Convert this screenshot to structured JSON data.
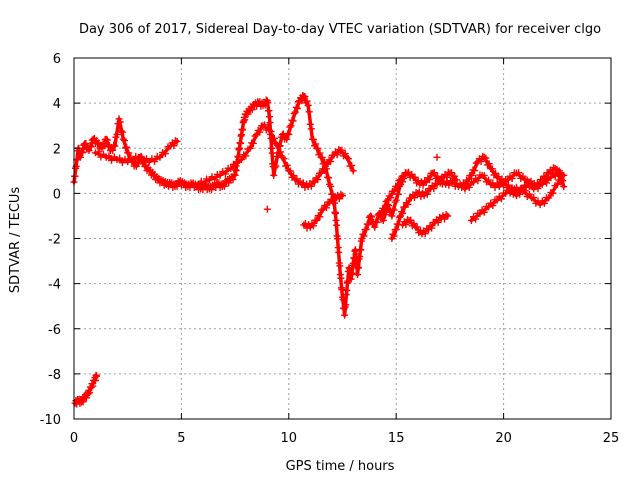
{
  "chart_data": {
    "type": "scatter",
    "title": "Day 306 of 2017, Sidereal Day-to-day VTEC variation (SDTVAR) for receiver clgo",
    "xlabel": "GPS time / hours",
    "ylabel": "SDTVAR / TECUs",
    "xlim": [
      0,
      25
    ],
    "ylim": [
      -10,
      6
    ],
    "xticks": [
      0,
      5,
      10,
      15,
      20,
      25
    ],
    "yticks": [
      -10,
      -8,
      -6,
      -4,
      -2,
      0,
      2,
      4,
      6
    ],
    "xtick_labels": [
      "0",
      "5",
      "10",
      "15",
      "20",
      "25"
    ],
    "ytick_labels": [
      "-10",
      "-8",
      "-6",
      "-4",
      "-2",
      "0",
      "2",
      "4",
      "6"
    ],
    "grid": true,
    "marker": "+",
    "color": "#ff0000",
    "series": [
      {
        "name": "SDTVAR",
        "segments": [
          [
            [
              0.05,
              -9.3
            ],
            [
              0.2,
              -9.2
            ],
            [
              0.35,
              -9.25
            ],
            [
              0.5,
              -9.05
            ],
            [
              0.65,
              -8.9
            ],
            [
              0.8,
              -8.6
            ],
            [
              0.95,
              -8.3
            ],
            [
              1.05,
              -8.1
            ]
          ],
          [
            [
              0.0,
              0.5
            ],
            [
              0.1,
              1.2
            ],
            [
              0.2,
              2.0
            ],
            [
              0.3,
              1.6
            ],
            [
              0.5,
              2.2
            ],
            [
              0.7,
              1.9
            ],
            [
              0.9,
              2.4
            ],
            [
              1.1,
              2.2
            ],
            [
              1.3,
              2.0
            ],
            [
              1.5,
              2.4
            ],
            [
              1.7,
              1.9
            ],
            [
              1.9,
              2.1
            ],
            [
              2.1,
              3.3
            ],
            [
              2.3,
              2.4
            ],
            [
              2.5,
              1.8
            ],
            [
              2.7,
              1.4
            ],
            [
              2.9,
              1.2
            ],
            [
              3.1,
              1.6
            ],
            [
              3.3,
              1.2
            ],
            [
              3.5,
              1.0
            ],
            [
              3.7,
              0.8
            ],
            [
              3.9,
              0.6
            ],
            [
              4.1,
              0.5
            ],
            [
              4.3,
              0.4
            ],
            [
              4.5,
              0.4
            ],
            [
              4.7,
              0.3
            ],
            [
              4.9,
              0.5
            ],
            [
              5.1,
              0.4
            ],
            [
              5.3,
              0.3
            ],
            [
              5.5,
              0.4
            ],
            [
              5.7,
              0.3
            ],
            [
              5.9,
              0.2
            ],
            [
              6.1,
              0.3
            ],
            [
              6.3,
              0.2
            ],
            [
              6.5,
              0.3
            ],
            [
              6.7,
              0.4
            ],
            [
              6.9,
              0.3
            ],
            [
              7.1,
              0.5
            ],
            [
              7.3,
              0.6
            ],
            [
              7.5,
              0.8
            ],
            [
              7.6,
              1.4
            ],
            [
              7.7,
              2.0
            ],
            [
              7.8,
              2.6
            ],
            [
              7.9,
              3.2
            ],
            [
              8.0,
              3.5
            ],
            [
              8.2,
              3.7
            ],
            [
              8.4,
              3.9
            ],
            [
              8.6,
              4.0
            ],
            [
              8.8,
              3.9
            ],
            [
              9.0,
              4.1
            ],
            [
              9.1,
              3.4
            ],
            [
              9.2,
              2.0
            ],
            [
              9.3,
              0.8
            ],
            [
              9.5,
              1.8
            ],
            [
              9.7,
              2.6
            ],
            [
              9.9,
              2.4
            ],
            [
              10.1,
              3.0
            ],
            [
              10.3,
              3.6
            ],
            [
              10.5,
              4.1
            ],
            [
              10.7,
              4.3
            ],
            [
              10.9,
              3.9
            ],
            [
              11.1,
              2.4
            ],
            [
              11.3,
              2.0
            ],
            [
              11.5,
              1.6
            ],
            [
              11.7,
              1.2
            ],
            [
              11.9,
              0.4
            ],
            [
              12.1,
              -0.3
            ],
            [
              12.2,
              -1.2
            ],
            [
              12.3,
              -2.4
            ],
            [
              12.4,
              -3.6
            ],
            [
              12.5,
              -4.6
            ],
            [
              12.6,
              -5.4
            ],
            [
              12.7,
              -4.3
            ],
            [
              12.8,
              -3.3
            ],
            [
              12.9,
              -3.8
            ],
            [
              13.0,
              -3.1
            ],
            [
              13.1,
              -2.5
            ],
            [
              13.2,
              -3.6
            ],
            [
              13.3,
              -2.8
            ],
            [
              13.4,
              -2.0
            ],
            [
              13.6,
              -1.6
            ],
            [
              13.8,
              -1.0
            ],
            [
              14.0,
              -1.5
            ],
            [
              14.2,
              -0.9
            ],
            [
              14.4,
              -1.2
            ],
            [
              14.6,
              -0.5
            ],
            [
              14.8,
              -1.0
            ],
            [
              15.0,
              -0.3
            ],
            [
              15.2,
              0.4
            ],
            [
              15.4,
              0.8
            ]
          ],
          [
            [
              1.0,
              1.8
            ],
            [
              1.5,
              1.6
            ],
            [
              2.0,
              1.5
            ],
            [
              2.5,
              1.4
            ],
            [
              3.0,
              1.6
            ],
            [
              3.5,
              1.4
            ],
            [
              4.0,
              1.6
            ],
            [
              4.5,
              2.1
            ],
            [
              4.8,
              2.3
            ]
          ],
          [
            [
              5.8,
              0.4
            ],
            [
              6.3,
              0.6
            ],
            [
              6.8,
              0.8
            ],
            [
              7.3,
              1.1
            ],
            [
              7.8,
              1.5
            ],
            [
              8.2,
              2.0
            ],
            [
              8.5,
              2.6
            ],
            [
              8.8,
              3.0
            ],
            [
              9.1,
              2.8
            ],
            [
              9.4,
              2.2
            ],
            [
              9.7,
              1.6
            ],
            [
              10.0,
              1.0
            ],
            [
              10.3,
              0.6
            ],
            [
              10.6,
              0.4
            ],
            [
              10.9,
              0.3
            ],
            [
              11.2,
              0.5
            ],
            [
              11.5,
              0.9
            ],
            [
              11.8,
              1.3
            ],
            [
              12.1,
              1.7
            ],
            [
              12.4,
              1.9
            ],
            [
              12.7,
              1.6
            ],
            [
              13.0,
              1.0
            ]
          ],
          [
            [
              10.7,
              -1.4
            ],
            [
              11.0,
              -1.5
            ],
            [
              11.3,
              -1.2
            ],
            [
              11.6,
              -0.7
            ],
            [
              11.9,
              -0.4
            ],
            [
              12.2,
              -0.2
            ],
            [
              12.5,
              -0.1
            ]
          ],
          [
            [
              14.3,
              -0.9
            ],
            [
              14.6,
              -0.3
            ],
            [
              14.9,
              0.1
            ],
            [
              15.2,
              0.6
            ],
            [
              15.5,
              0.9
            ],
            [
              15.8,
              0.7
            ],
            [
              16.1,
              0.4
            ],
            [
              16.4,
              0.5
            ],
            [
              16.7,
              0.9
            ],
            [
              17.0,
              0.6
            ],
            [
              17.3,
              0.4
            ],
            [
              17.6,
              0.5
            ],
            [
              17.9,
              0.3
            ],
            [
              18.2,
              0.4
            ],
            [
              18.5,
              0.8
            ],
            [
              18.8,
              1.4
            ],
            [
              19.1,
              1.6
            ],
            [
              19.4,
              1.1
            ],
            [
              19.7,
              0.7
            ],
            [
              20.0,
              0.5
            ],
            [
              20.3,
              0.2
            ],
            [
              20.6,
              -0.1
            ],
            [
              20.9,
              0.2
            ],
            [
              21.2,
              0.5
            ],
            [
              21.5,
              0.3
            ],
            [
              21.8,
              0.6
            ],
            [
              22.1,
              0.9
            ],
            [
              22.4,
              1.1
            ],
            [
              22.7,
              0.6
            ]
          ],
          [
            [
              14.8,
              -2.0
            ],
            [
              15.0,
              -1.6
            ],
            [
              15.2,
              -1.0
            ],
            [
              15.4,
              -0.6
            ],
            [
              15.7,
              -0.2
            ],
            [
              16.0,
              0.0
            ],
            [
              16.3,
              -0.1
            ],
            [
              16.6,
              0.2
            ],
            [
              16.9,
              0.4
            ],
            [
              17.2,
              0.7
            ],
            [
              17.5,
              0.9
            ],
            [
              17.8,
              0.6
            ]
          ],
          [
            [
              15.3,
              -1.4
            ],
            [
              15.6,
              -1.2
            ],
            [
              15.9,
              -1.5
            ],
            [
              16.2,
              -1.8
            ],
            [
              16.5,
              -1.6
            ],
            [
              16.8,
              -1.3
            ],
            [
              17.1,
              -1.1
            ],
            [
              17.4,
              -1.0
            ]
          ],
          [
            [
              18.2,
              0.2
            ],
            [
              18.6,
              0.5
            ],
            [
              19.0,
              0.8
            ],
            [
              19.4,
              0.4
            ],
            [
              19.8,
              0.3
            ],
            [
              20.2,
              0.6
            ],
            [
              20.6,
              0.9
            ],
            [
              21.0,
              0.6
            ],
            [
              21.4,
              0.2
            ],
            [
              21.8,
              0.4
            ],
            [
              22.2,
              0.7
            ],
            [
              22.6,
              1.0
            ],
            [
              22.8,
              0.3
            ]
          ],
          [
            [
              18.5,
              -1.2
            ],
            [
              18.9,
              -0.9
            ],
            [
              19.3,
              -0.6
            ],
            [
              19.7,
              -0.3
            ],
            [
              20.1,
              0.0
            ],
            [
              20.5,
              0.2
            ],
            [
              20.9,
              0.1
            ],
            [
              21.3,
              -0.2
            ],
            [
              21.7,
              -0.5
            ],
            [
              22.1,
              -0.2
            ],
            [
              22.5,
              0.4
            ],
            [
              22.8,
              0.8
            ]
          ],
          [
            [
              16.9,
              1.6
            ]
          ],
          [
            [
              9.0,
              -0.7
            ]
          ]
        ]
      }
    ]
  }
}
